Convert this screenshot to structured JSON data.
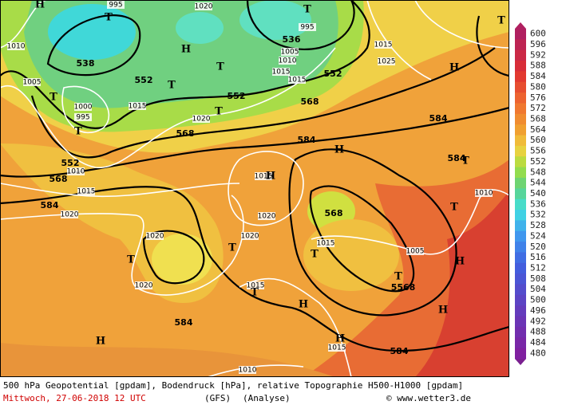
{
  "caption": {
    "description": "500 hPa Geopotential [gpdam], Bodendruck [hPa], relative Topographie H500-H1000 [gpdam]",
    "date": "Mittwoch, 27-06-2018  12 UTC",
    "model": "(GFS)",
    "run": "(Analyse)",
    "credit": "© www.wetter3.de"
  },
  "colorbar": {
    "values": [
      600,
      596,
      592,
      588,
      584,
      580,
      576,
      572,
      568,
      564,
      560,
      556,
      552,
      548,
      544,
      540,
      536,
      532,
      528,
      524,
      520,
      516,
      512,
      508,
      504,
      500,
      496,
      492,
      488,
      484,
      480
    ]
  },
  "geopotential_labels": [
    538,
    552,
    552,
    536,
    552,
    568,
    568,
    568,
    552,
    584,
    584,
    584,
    584,
    568,
    584,
    584,
    "5568"
  ],
  "pressure_labels": [
    1010,
    1020,
    995,
    995,
    1005,
    1010,
    1015,
    1020,
    1015,
    1015,
    1005,
    1000,
    995,
    1015,
    1020,
    1010,
    1015,
    1020,
    1015,
    1025,
    1020,
    1020,
    1020,
    1015,
    1015,
    1005,
    1015,
    1010,
    1010
  ],
  "centers": [
    "T",
    "T",
    "T",
    "T",
    "T",
    "T",
    "T",
    "T",
    "T",
    "T",
    "T",
    "T",
    "T",
    "T",
    "T",
    "H",
    "H",
    "H",
    "H",
    "H",
    "H",
    "H",
    "H",
    "H",
    "H"
  ]
}
